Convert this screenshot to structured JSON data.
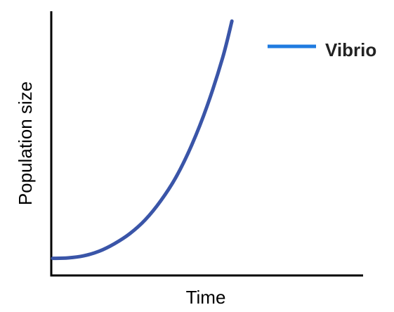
{
  "chart_data": {
    "type": "line",
    "title": "",
    "xlabel": "Time",
    "ylabel": "Population size",
    "xlim": [
      0,
      10
    ],
    "ylim": [
      0,
      10
    ],
    "grid": false,
    "legend_position": "top-right",
    "series": [
      {
        "name": "Vibrio",
        "color": "#3a55a8",
        "legend_color": "#1f7be0",
        "x": [
          0,
          0.5,
          1,
          1.5,
          2,
          2.5,
          3,
          3.5,
          4,
          4.5,
          5,
          5.5,
          5.8
        ],
        "y": [
          0.62,
          0.64,
          0.72,
          0.9,
          1.2,
          1.6,
          2.15,
          2.9,
          3.85,
          5.1,
          6.65,
          8.55,
          10.0
        ]
      }
    ]
  }
}
